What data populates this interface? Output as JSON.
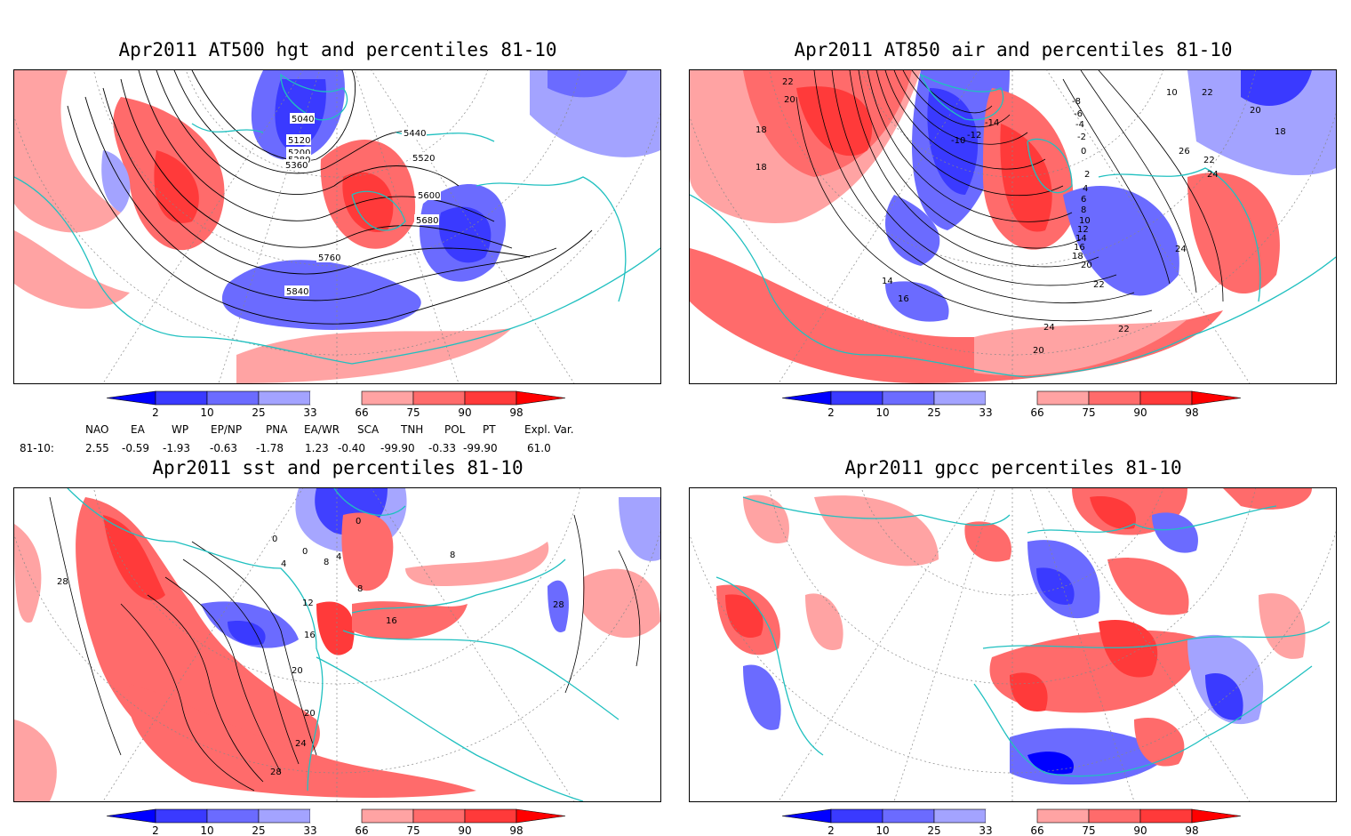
{
  "panels": [
    {
      "id": "hgt500",
      "title": "Apr2011 AT500 hgt and percentiles 81-10",
      "contour_labels": [
        "5040",
        "5120",
        "5200",
        "5280",
        "5360",
        "5440",
        "5520",
        "5600",
        "5680",
        "5760",
        "5840"
      ]
    },
    {
      "id": "air850",
      "title": "Apr2011 AT850 air and percentiles 81-10",
      "contour_labels": [
        "22",
        "20",
        "18",
        "18",
        "-10",
        "-12",
        "-14",
        "-8",
        "-6",
        "-4",
        "-2",
        "0",
        "2",
        "4",
        "6",
        "8",
        "10",
        "12",
        "14",
        "16",
        "18",
        "20",
        "22",
        "24",
        "26",
        "10",
        "22",
        "20",
        "18",
        "22",
        "24",
        "14",
        "16",
        "24",
        "22",
        "20"
      ]
    },
    {
      "id": "sst",
      "title": "Apr2011 sst and percentiles 81-10",
      "contour_labels": [
        "0",
        "0",
        "0",
        "4",
        "8",
        "4",
        "8",
        "8",
        "12",
        "16",
        "16",
        "20",
        "20",
        "24",
        "28",
        "28",
        "28"
      ]
    },
    {
      "id": "gpcc",
      "title": "Apr2011 gpcc percentiles 81-10",
      "contour_labels": []
    }
  ],
  "colorbar": {
    "ticks": [
      "2",
      "10",
      "25",
      "33",
      "66",
      "75",
      "90",
      "98"
    ],
    "colors": [
      "#0000ff",
      "#3a3aff",
      "#6b6bff",
      "#a3a3ff",
      "#ffffff",
      "#ffa3a3",
      "#ff6b6b",
      "#ff3a3a",
      "#ff0000"
    ]
  },
  "teleconnections": {
    "headers": [
      "NAO",
      "EA",
      "WP",
      "EP/NP",
      "PNA",
      "EA/WR",
      "SCA",
      "TNH",
      "POL",
      "PT",
      "Expl. Var."
    ],
    "row_label": "81-10:",
    "values": [
      "2.55",
      "-0.59",
      "-1.93",
      "-0.63",
      "-1.78",
      "1.23",
      "-0.40",
      "-99.90",
      "-0.33",
      "-99.90",
      "61.0"
    ]
  },
  "map_colors": {
    "coast": "#20c0c0",
    "grid": "#888888",
    "contour": "#000000"
  }
}
